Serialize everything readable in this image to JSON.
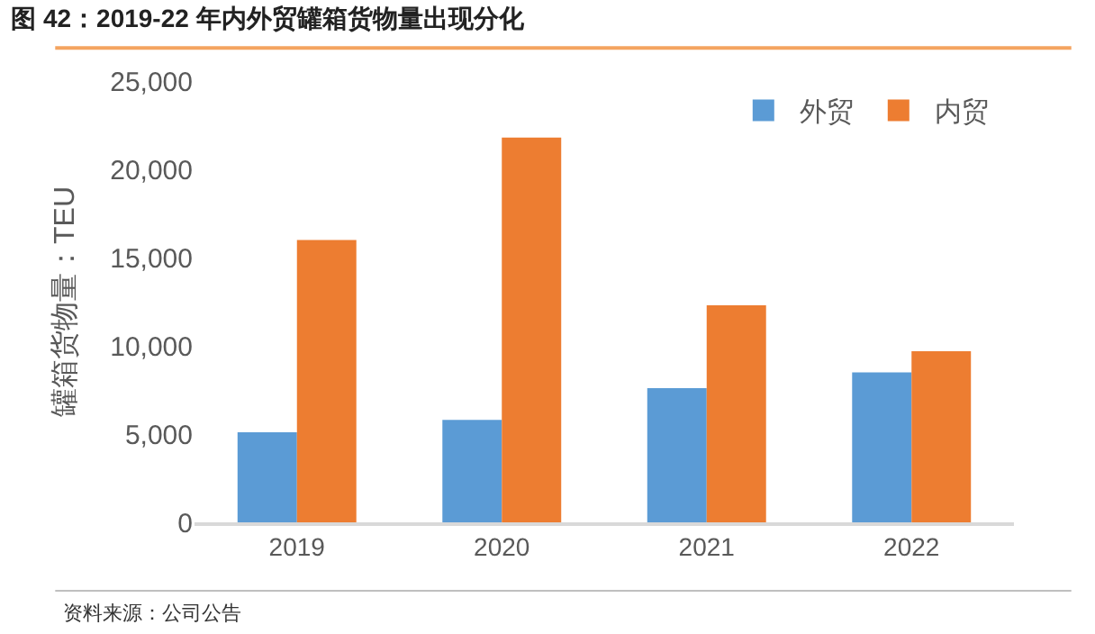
{
  "chart_data": {
    "type": "bar",
    "title": "图 42：2019-22 年内外贸罐箱货物量出现分化",
    "ylabel": "罐箱货物量：TEU",
    "categories": [
      "2019",
      "2020",
      "2021",
      "2022"
    ],
    "series": [
      {
        "name": "外贸",
        "color": "#5b9bd5",
        "values": [
          5100,
          5800,
          7600,
          8500
        ]
      },
      {
        "name": "内贸",
        "color": "#ed7d31",
        "values": [
          16000,
          21800,
          12300,
          9700
        ]
      }
    ],
    "ylim": [
      0,
      25000
    ],
    "yticks": [
      0,
      {
        "value": 5000,
        "label": "5,000"
      },
      {
        "value": 10000,
        "label": "10,000"
      },
      {
        "value": 15000,
        "label": "15,000"
      },
      {
        "value": 20000,
        "label": "20,000"
      },
      {
        "value": 25000,
        "label": "25,000"
      }
    ],
    "legend": "top right",
    "annotations": [
      "资料来源：公司公告"
    ]
  }
}
